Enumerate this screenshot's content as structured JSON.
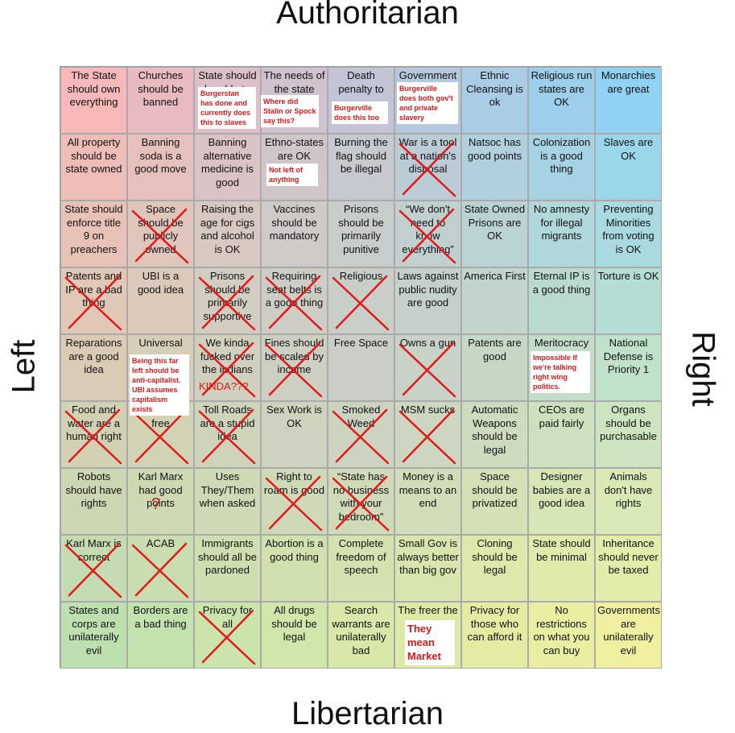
{
  "title_top": "Authoritarian",
  "title_bottom": "Libertarian",
  "label_left": "Left",
  "label_right": "Right",
  "grid": [
    [
      {
        "text": "The State should own everything"
      },
      {
        "text": "Churches should be banned"
      },
      {
        "text": "State should be able to",
        "note": "Burgerstan has done and currently does this to slaves"
      },
      {
        "text": "The needs of the state",
        "note": "Where did Stalin or Spock say this?"
      },
      {
        "text": "Death penalty to",
        "note": "Burgerville does this too"
      },
      {
        "text": "Government",
        "note": "Burgerville does both gov't and private slavery"
      },
      {
        "text": "Ethnic Cleansing is ok"
      },
      {
        "text": "Religious run states are OK"
      },
      {
        "text": "Monarchies are great"
      }
    ],
    [
      {
        "text": "All property should be state owned"
      },
      {
        "text": "Banning soda is a good move"
      },
      {
        "text": "Banning alternative medicine is good"
      },
      {
        "text": "Ethno-states are OK",
        "note": "Not left of anything"
      },
      {
        "text": "Burning the flag should be illegal"
      },
      {
        "text": "War is a tool at a nation's disposal"
      },
      {
        "text": "Natsoc has good points"
      },
      {
        "text": "Colonization is a good thing"
      },
      {
        "text": "Slaves are OK"
      }
    ],
    [
      {
        "text": "State should enforce title 9 on preachers"
      },
      {
        "text": "Space should be publicly owned"
      },
      {
        "text": "Raising the age for cigs and alcohol is OK"
      },
      {
        "text": "Vaccines should be mandatory"
      },
      {
        "text": "Prisons should be primarily punitive"
      },
      {
        "text": "“We don't need to know everything”"
      },
      {
        "text": "State Owned Prisons are OK"
      },
      {
        "text": "No amnesty for illegal migrants"
      },
      {
        "text": "Preventing Minorities from voting is OK"
      }
    ],
    [
      {
        "text": "Patents and IP are a bad thing"
      },
      {
        "text": "UBI is a good idea"
      },
      {
        "text": "Prisons should be primarily supportive"
      },
      {
        "text": "Requiring seat belts is a good thing"
      },
      {
        "text": "Religious"
      },
      {
        "text": "Laws against public nudity are good"
      },
      {
        "text": "America First"
      },
      {
        "text": "Eternal IP is a good thing"
      },
      {
        "text": "Torture is OK"
      }
    ],
    [
      {
        "text": "Reparations are a good idea"
      },
      {
        "text": "Universal",
        "note": "Being this far left should be anti-capitalist. UBI assumes capitalism exists"
      },
      {
        "text": "We kinda fucked over the indians",
        "note": "KINDA???"
      },
      {
        "text": "Fines should be scaled by income"
      },
      {
        "text": "Free Space"
      },
      {
        "text": "Owns a gun"
      },
      {
        "text": "Patents are good"
      },
      {
        "text": "Meritocracy",
        "note": "Impossible If we're talking right wing politics."
      },
      {
        "text": "National Defense is Priority 1"
      }
    ],
    [
      {
        "text": "Food and water are a human right"
      },
      {
        "text": "should be free"
      },
      {
        "text": "Toll Roads are a stupid idea"
      },
      {
        "text": "Sex Work is OK"
      },
      {
        "text": "Smoked Weed"
      },
      {
        "text": "MSM sucks"
      },
      {
        "text": "Automatic Weapons should be legal"
      },
      {
        "text": "CEOs are paid fairly"
      },
      {
        "text": "Organs should be purchasable"
      }
    ],
    [
      {
        "text": "Robots should have rights"
      },
      {
        "text": "Karl Marx had good points",
        "note": "?"
      },
      {
        "text": "Uses They/Them when asked"
      },
      {
        "text": "Right to roam is good"
      },
      {
        "text": "“State has no business with your bedroom”"
      },
      {
        "text": "Money is a means to an end"
      },
      {
        "text": "Space should be privatized"
      },
      {
        "text": "Designer babies are a good idea"
      },
      {
        "text": "Animals don't have rights"
      }
    ],
    [
      {
        "text": "Karl Marx is correct"
      },
      {
        "text": "ACAB"
      },
      {
        "text": "Immigrants should all be pardoned"
      },
      {
        "text": "Abortion is a good thing"
      },
      {
        "text": "Complete freedom of speech"
      },
      {
        "text": "Small Gov is always better than big gov"
      },
      {
        "text": "Cloning should be legal"
      },
      {
        "text": "State should be minimal"
      },
      {
        "text": "Inheritance should never be taxed"
      }
    ],
    [
      {
        "text": "States and corps are unilaterally evil"
      },
      {
        "text": "Borders are a bad thing"
      },
      {
        "text": "Privacy for all"
      },
      {
        "text": "All drugs should be legal"
      },
      {
        "text": "Search warrants are unilaterally bad"
      },
      {
        "text": "The freer the",
        "note": "They mean Market"
      },
      {
        "text": "Privacy for those who can afford it"
      },
      {
        "text": "No restrictions on what you can buy"
      },
      {
        "text": "Governments are unilaterally evil"
      }
    ]
  ]
}
